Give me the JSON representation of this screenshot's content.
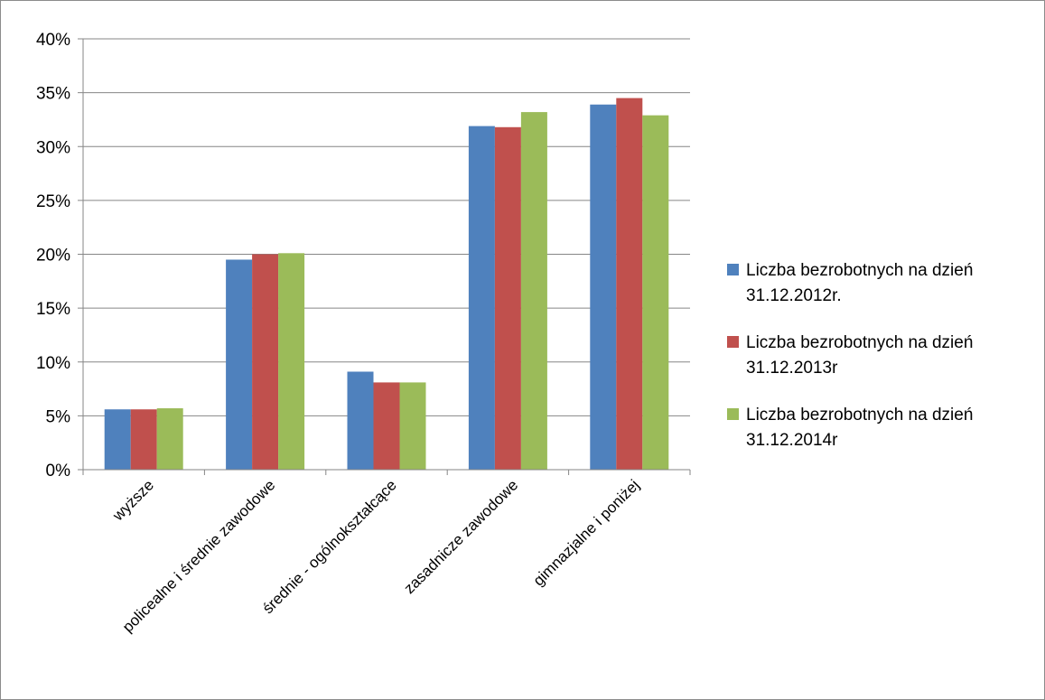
{
  "chart_data": {
    "type": "bar",
    "title": "",
    "xlabel": "",
    "ylabel": "",
    "ylim": [
      0,
      40
    ],
    "y_ticks": [
      0,
      5,
      10,
      15,
      20,
      25,
      30,
      35,
      40
    ],
    "y_tick_labels": [
      "0%",
      "5%",
      "10%",
      "15%",
      "20%",
      "25%",
      "30%",
      "35%",
      "40%"
    ],
    "grid": "horizontal",
    "legend_position": "right",
    "categories": [
      "wyższe",
      "policealne i średnie zawodowe",
      "średnie - ogólnokształcące",
      "zasadnicze zawodowe",
      "gimnazjalne i poniżej"
    ],
    "series": [
      {
        "name_lines": [
          "Liczba bezrobotnych na dzień",
          "31.12.2012r."
        ],
        "color": "#4f81bd",
        "values": [
          5.6,
          19.5,
          9.1,
          31.9,
          33.9
        ]
      },
      {
        "name_lines": [
          "Liczba bezrobotnych na dzień",
          "31.12.2013r"
        ],
        "color": "#c0504d",
        "values": [
          5.6,
          20.0,
          8.1,
          31.8,
          34.5
        ]
      },
      {
        "name_lines": [
          "Liczba bezrobotnych na dzień",
          "31.12.2014r"
        ],
        "color": "#9bbb59",
        "values": [
          5.7,
          20.1,
          8.1,
          33.2,
          32.9
        ]
      }
    ]
  }
}
